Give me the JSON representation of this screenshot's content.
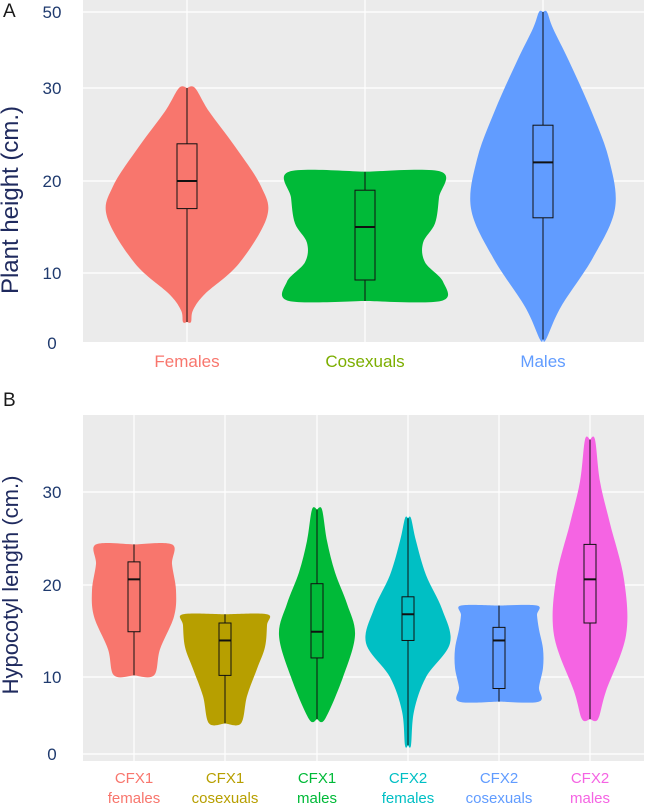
{
  "chart_data": [
    {
      "panel": "A",
      "type": "violin",
      "ylabel": "Plant height (cm.)",
      "yticks": [
        "0",
        "10",
        "20",
        "30",
        "50"
      ],
      "categories": [
        "Females",
        "Cosexuals",
        "Males"
      ],
      "colors": [
        "#f8766d",
        "#00ba38",
        "#619cff"
      ],
      "label_colors": [
        "#f8766d",
        "#7cae00",
        "#619cff"
      ],
      "summary": [
        {
          "min": 3,
          "q1": 17,
          "median": 20,
          "q3": 24,
          "max": 30
        },
        {
          "min": 6,
          "q1": 9,
          "median": 15,
          "q3": 19,
          "max": 21
        },
        {
          "min": 0.5,
          "q1": 16,
          "median": 22,
          "q3": 26,
          "max": 50
        }
      ]
    },
    {
      "panel": "B",
      "type": "violin",
      "ylabel": "Hypocotyl length (cm.)",
      "yticks": [
        "0",
        "10",
        "20",
        "30"
      ],
      "ylim": [
        0,
        36
      ],
      "categories": [
        [
          "CFX1",
          "females"
        ],
        [
          "CFX1",
          "cosexuals"
        ],
        [
          "CFX1",
          "males"
        ],
        [
          "CFX2",
          "females"
        ],
        [
          "CFX2",
          "cosexuals"
        ],
        [
          "CFX2",
          "males"
        ]
      ],
      "colors": [
        "#f8766d",
        "#b79f00",
        "#00ba38",
        "#00bfc4",
        "#619cff",
        "#f564e3"
      ],
      "label_colors": [
        "#f8766d",
        "#b79f00",
        "#00ba38",
        "#00bfc4",
        "#619cff",
        "#f564e3"
      ],
      "summary": [
        {
          "min": 9,
          "q1": 14,
          "median": 20,
          "q3": 22,
          "max": 24
        },
        {
          "min": 3.5,
          "q1": 9,
          "median": 13,
          "q3": 15,
          "max": 16
        },
        {
          "min": 4,
          "q1": 11,
          "median": 14,
          "q3": 19.5,
          "max": 28
        },
        {
          "min": 1,
          "q1": 13,
          "median": 16,
          "q3": 18,
          "max": 27
        },
        {
          "min": 6,
          "q1": 7.5,
          "median": 13,
          "q3": 14.5,
          "max": 17
        },
        {
          "min": 4,
          "q1": 15,
          "median": 20,
          "q3": 24,
          "max": 36
        }
      ]
    }
  ]
}
